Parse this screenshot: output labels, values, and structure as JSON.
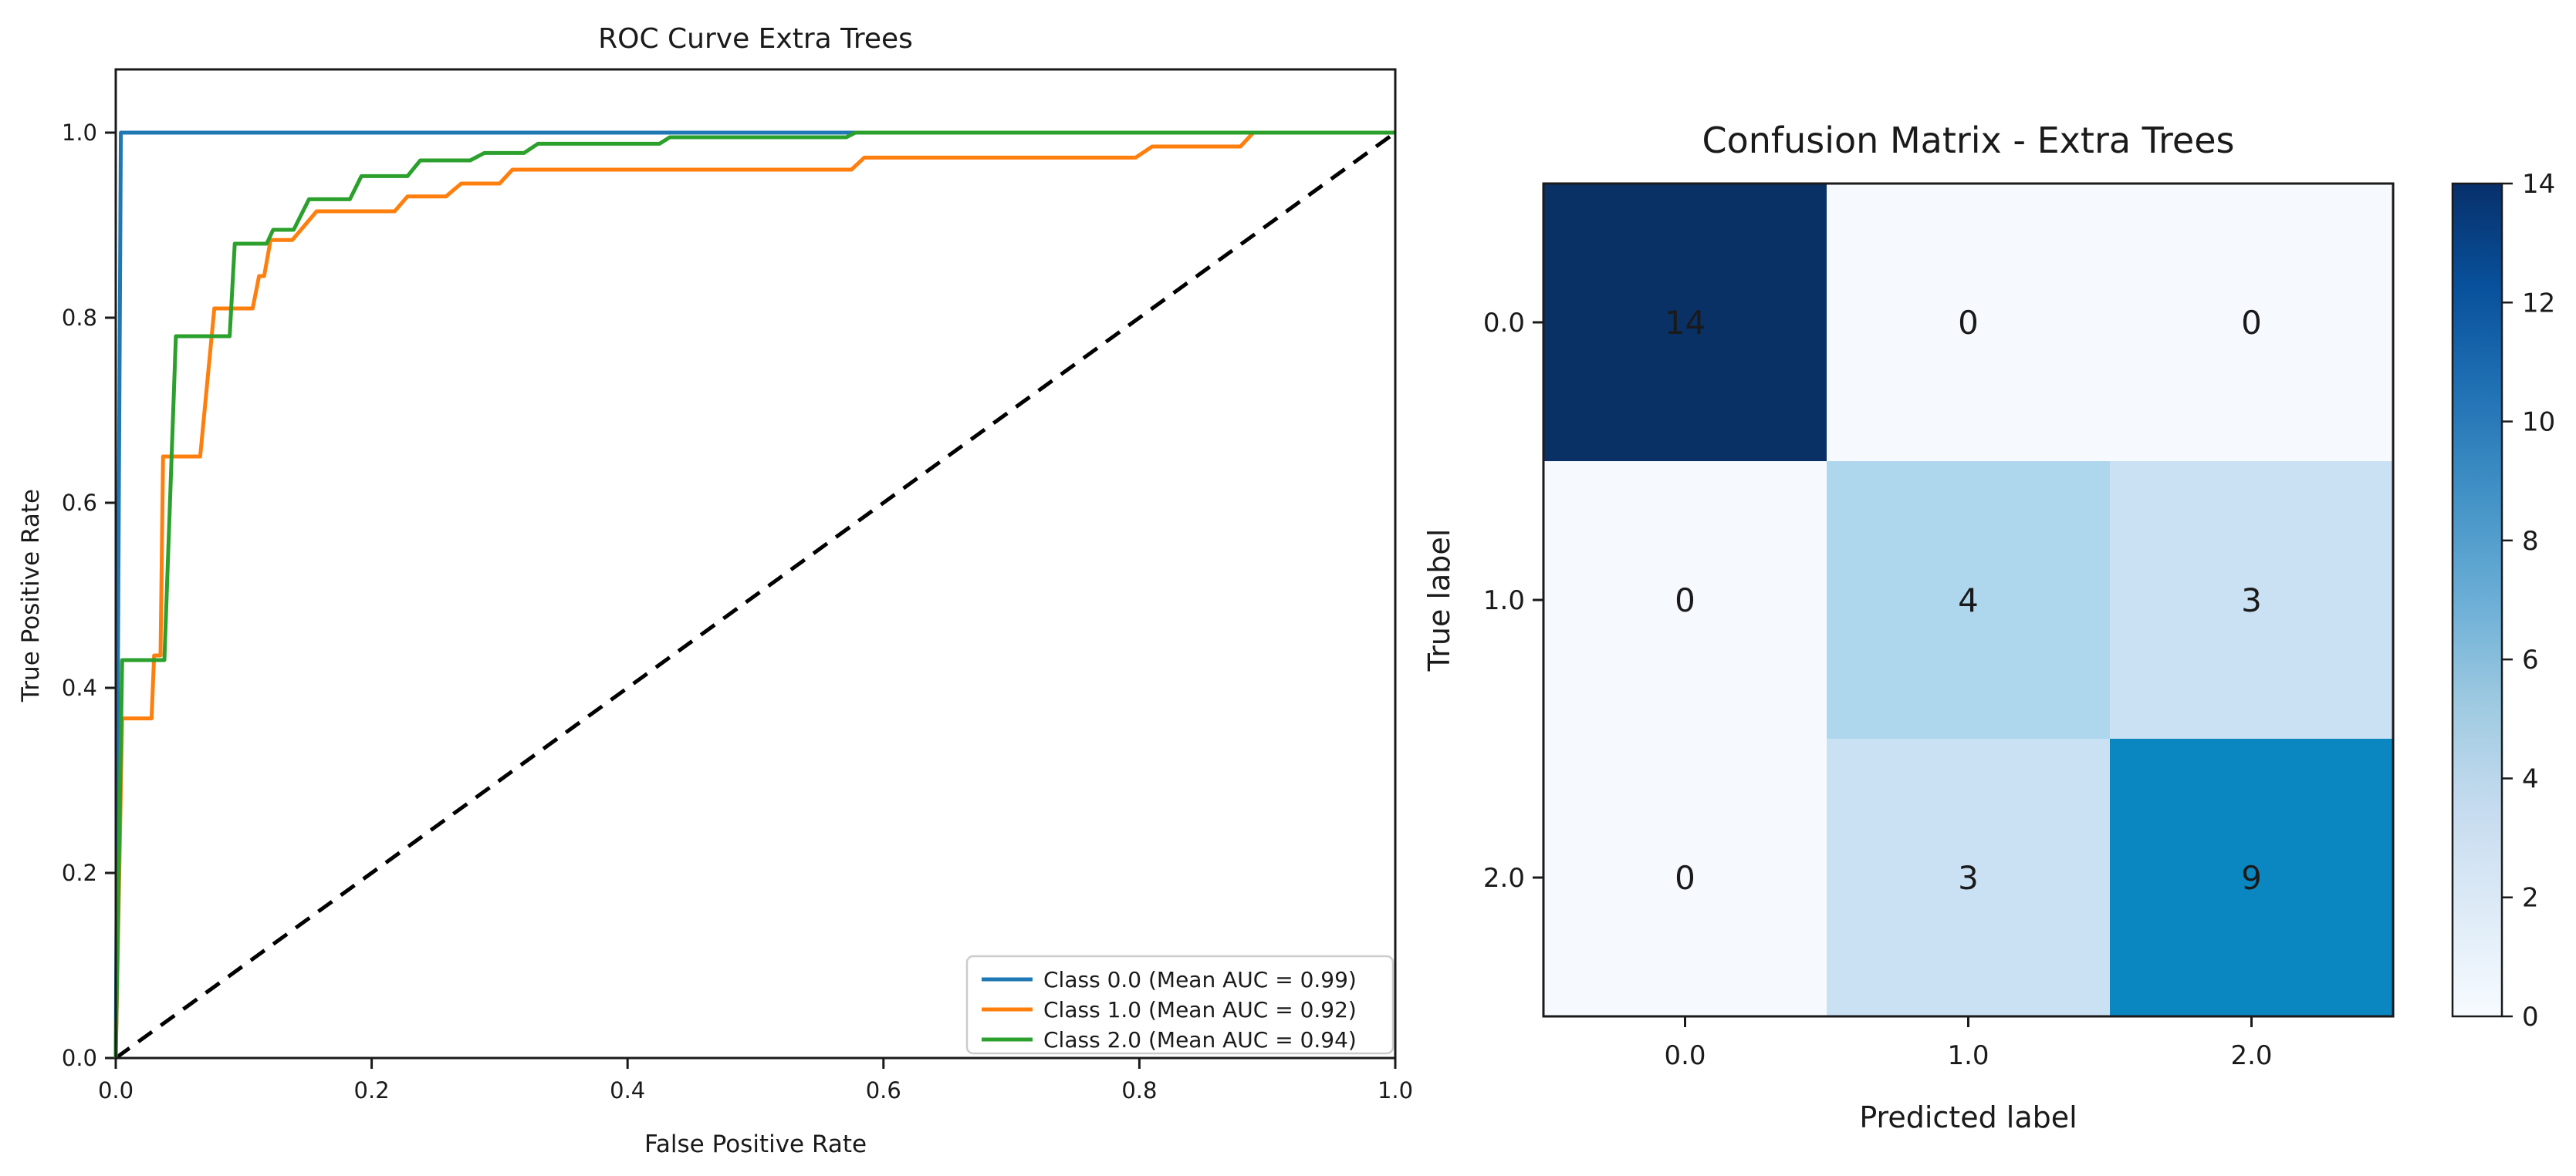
{
  "page": {
    "background": "#ffffff",
    "text_color": "#1a1a1a"
  },
  "chart_data": [
    {
      "id": "roc",
      "type": "line",
      "title": "ROC Curve Extra Trees",
      "xlabel": "False Positive Rate",
      "ylabel": "True Positive Rate",
      "xlim": [
        0.0,
        1.0
      ],
      "ylim": [
        0.0,
        1.068
      ],
      "xticks": [
        0.0,
        0.2,
        0.4,
        0.6,
        0.8,
        1.0
      ],
      "yticks": [
        0.0,
        0.2,
        0.4,
        0.6,
        0.8,
        1.0
      ],
      "grid": false,
      "legend_position": "lower right",
      "series": [
        {
          "name": "Class 0.0 (Mean AUC = 0.99)",
          "color": "#1f77b4",
          "style": "solid",
          "legend": true,
          "x": [
            0,
            0.004,
            1.0
          ],
          "y": [
            0,
            1.0,
            1.0
          ]
        },
        {
          "name": "Class 1.0 (Mean AUC = 0.92)",
          "color": "#ff7f0e",
          "style": "solid",
          "legend": true,
          "x": [
            0,
            0.005,
            0.028,
            0.03,
            0.035,
            0.037,
            0.066,
            0.077,
            0.107,
            0.112,
            0.116,
            0.121,
            0.138,
            0.157,
            0.218,
            0.228,
            0.258,
            0.27,
            0.3,
            0.31,
            0.575,
            0.585,
            0.797,
            0.81,
            0.879,
            0.889,
            1.0
          ],
          "y": [
            0,
            0.367,
            0.367,
            0.435,
            0.435,
            0.65,
            0.65,
            0.81,
            0.81,
            0.845,
            0.845,
            0.884,
            0.884,
            0.915,
            0.915,
            0.931,
            0.931,
            0.945,
            0.945,
            0.96,
            0.96,
            0.973,
            0.973,
            0.985,
            0.985,
            1.0,
            1.0
          ]
        },
        {
          "name": "Class 2.0 (Mean AUC = 0.94)",
          "color": "#2ca02c",
          "style": "solid",
          "legend": true,
          "x": [
            0,
            0.005,
            0.038,
            0.047,
            0.089,
            0.093,
            0.118,
            0.123,
            0.139,
            0.151,
            0.183,
            0.192,
            0.228,
            0.238,
            0.277,
            0.288,
            0.319,
            0.33,
            0.425,
            0.433,
            0.571,
            0.578,
            1.0
          ],
          "y": [
            0,
            0.43,
            0.43,
            0.78,
            0.78,
            0.88,
            0.88,
            0.895,
            0.895,
            0.928,
            0.928,
            0.953,
            0.953,
            0.97,
            0.97,
            0.978,
            0.978,
            0.988,
            0.988,
            0.995,
            0.995,
            1.0,
            1.0
          ]
        },
        {
          "name": "chance-diagonal",
          "color": "#000000",
          "style": "dashed",
          "legend": false,
          "x": [
            0,
            1.0
          ],
          "y": [
            0,
            1.0
          ]
        }
      ]
    },
    {
      "id": "confusion",
      "type": "heatmap",
      "title": "Confusion Matrix - Extra Trees",
      "xlabel": "Predicted label",
      "ylabel": "True label",
      "x_categories": [
        "0.0",
        "1.0",
        "2.0"
      ],
      "y_categories": [
        "0.0",
        "1.0",
        "2.0"
      ],
      "values": [
        [
          14,
          0,
          0
        ],
        [
          0,
          4,
          3
        ],
        [
          0,
          3,
          9
        ]
      ],
      "vmin": 0,
      "vmax": 14,
      "colormap": "Blues",
      "colorbar_ticks": [
        0,
        2,
        4,
        6,
        8,
        10,
        12,
        14
      ],
      "colorbar_gradient_stops": [
        "#f7fbff",
        "#deebf7",
        "#c6dbef",
        "#9ecae1",
        "#6baed6",
        "#4292c6",
        "#2171b5",
        "#08519c",
        "#08306b"
      ],
      "cell_colors": [
        [
          "#0a3166",
          "#f6fafe",
          "#f6fafe"
        ],
        [
          "#f6fafe",
          "#aed7ee",
          "#c9e1f2"
        ],
        [
          "#f6fafe",
          "#c9e1f2",
          "#0a87c0"
        ]
      ],
      "cell_text_colors": [
        [
          "#ffffff",
          "#0a3166",
          "#0a3166"
        ],
        [
          "#0a3166",
          "#0a3166",
          "#0a3166"
        ],
        [
          "#0a3166",
          "#0a3166",
          "#ffffff"
        ]
      ]
    }
  ]
}
